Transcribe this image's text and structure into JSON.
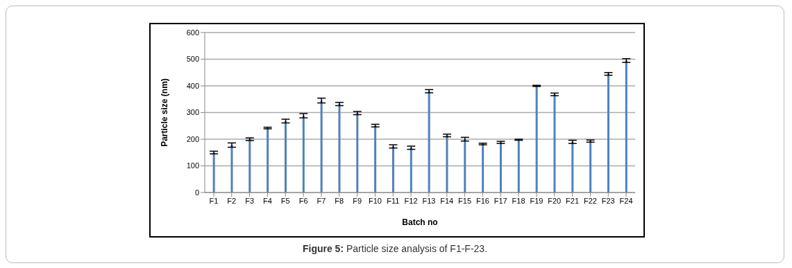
{
  "chart_data": {
    "type": "bar",
    "xlabel": "Batch no",
    "ylabel": "Particle size (nm)",
    "categories": [
      "F1",
      "F2",
      "F3",
      "F4",
      "F5",
      "F6",
      "F7",
      "F8",
      "F9",
      "F10",
      "F11",
      "F12",
      "F13",
      "F14",
      "F15",
      "F16",
      "F17",
      "F18",
      "F19",
      "F20",
      "F21",
      "F22",
      "F23",
      "F24"
    ],
    "values": [
      150,
      178,
      200,
      242,
      268,
      288,
      345,
      332,
      298,
      251,
      173,
      168,
      380,
      214,
      200,
      182,
      188,
      198,
      400,
      368,
      190,
      193,
      445,
      495
    ],
    "errors": [
      5,
      8,
      5,
      3,
      7,
      8,
      9,
      6,
      6,
      5,
      6,
      6,
      6,
      5,
      7,
      3,
      4,
      2,
      2,
      5,
      6,
      4,
      5,
      7
    ],
    "color": "#4f81bd",
    "ylim": [
      0,
      600
    ],
    "yticks": [
      0,
      100,
      200,
      300,
      400,
      500,
      600
    ],
    "grid": "y",
    "annotations": [
      "Figure 5: Particle size analysis of F1-F-23."
    ]
  }
}
